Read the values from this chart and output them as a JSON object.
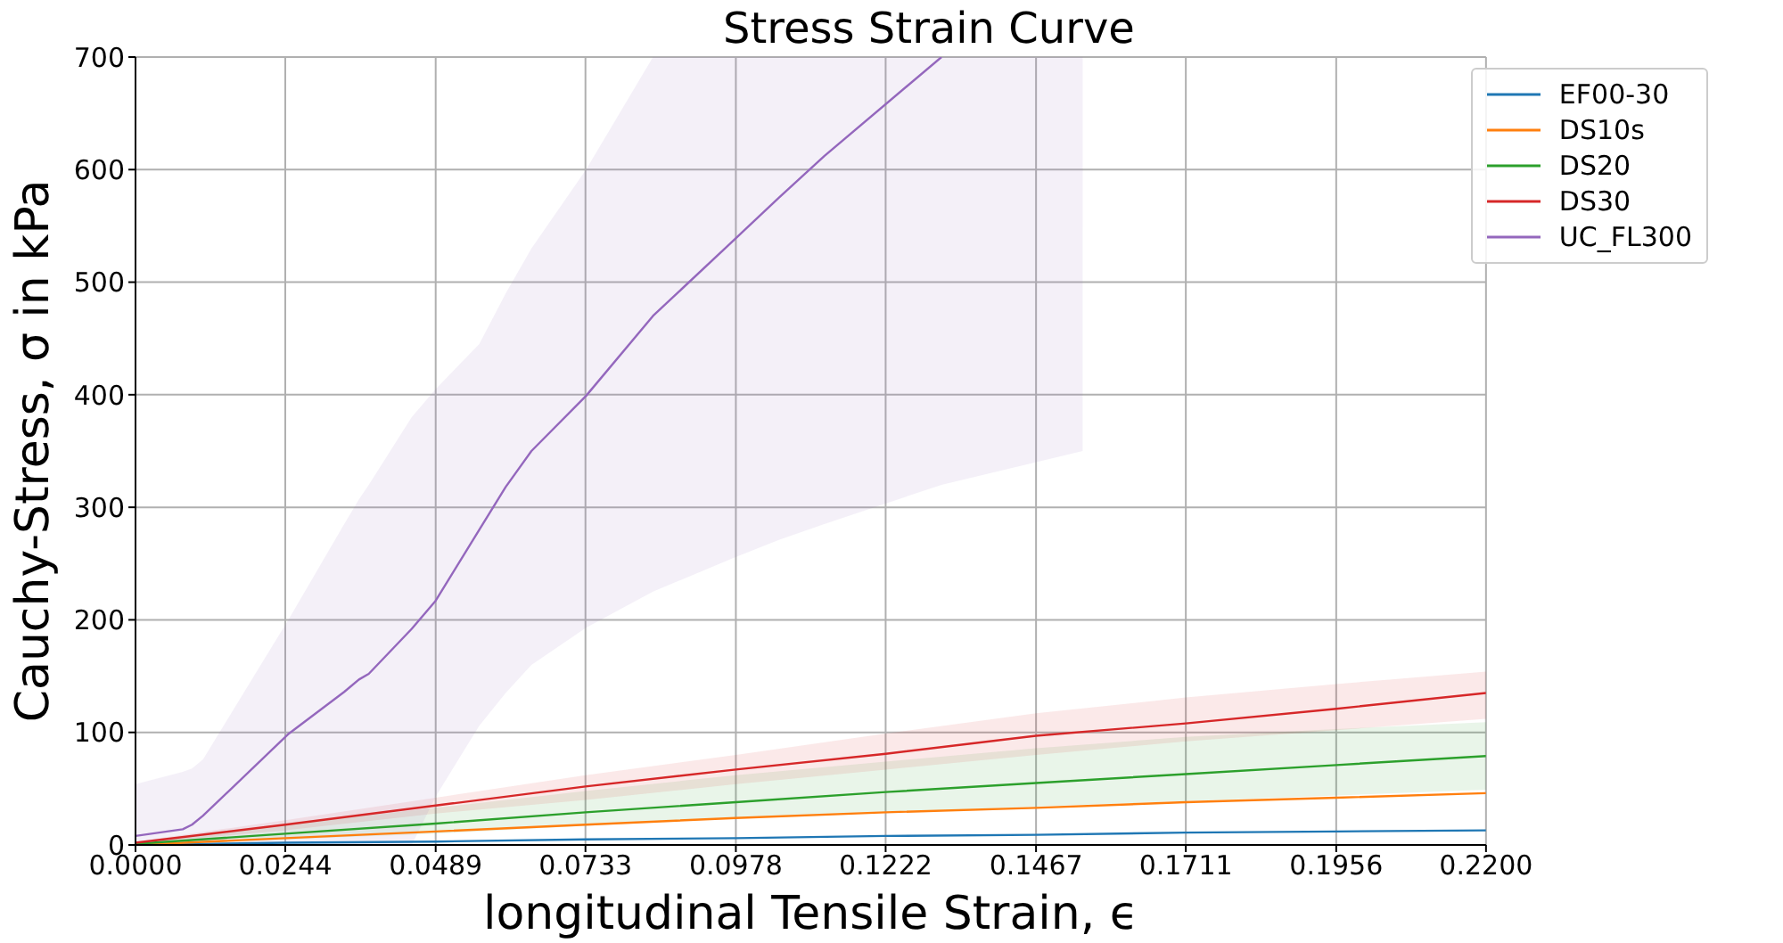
{
  "chart_data": {
    "type": "line",
    "title": "Stress Strain Curve",
    "xlabel": "longitudinal Tensile Strain, ϵ",
    "ylabel": "Cauchy-Stress, σ in kPa",
    "xlim": [
      0,
      0.22
    ],
    "ylim": [
      0,
      700
    ],
    "xticks": [
      {
        "value": 0,
        "label": "0.0000"
      },
      0.0244,
      0.0489,
      0.0733,
      0.0978,
      0.1222,
      0.1467,
      0.1711,
      0.1956,
      {
        "value": 0.22,
        "label": "0.2200"
      }
    ],
    "yticks": [
      0,
      100,
      200,
      300,
      400,
      500,
      600,
      700
    ],
    "grid": true,
    "legend": "top right",
    "x": [
      0,
      0.0244,
      0.0489,
      0.0733,
      0.0978,
      0.1222,
      0.1467,
      0.1711,
      0.1956,
      0.22
    ],
    "series": [
      {
        "name": "EF00-30",
        "color": "#1f77b4",
        "values": [
          0,
          2,
          3,
          5,
          6,
          8,
          9,
          11,
          12,
          13
        ]
      },
      {
        "name": "DS10s",
        "color": "#ff7f0e",
        "values": [
          0,
          6,
          12,
          18,
          24,
          29,
          33,
          38,
          42,
          46
        ]
      },
      {
        "name": "DS20",
        "color": "#2ca02c",
        "values": [
          1,
          10,
          19,
          29,
          38,
          47,
          55,
          63,
          71,
          79
        ],
        "lower": [
          0,
          5,
          10,
          17,
          24,
          29,
          34,
          39,
          44,
          49
        ],
        "upper": [
          2,
          18,
          33,
          48,
          62,
          74,
          86,
          96,
          103,
          109
        ]
      },
      {
        "name": "DS30",
        "color": "#d62728",
        "values": [
          2,
          18,
          35,
          52,
          67,
          81,
          97,
          108,
          121,
          135
        ],
        "lower": [
          1,
          13,
          28,
          40,
          54,
          67,
          80,
          92,
          102,
          112
        ],
        "upper": [
          3,
          22,
          42,
          62,
          80,
          99,
          117,
          131,
          143,
          154
        ]
      },
      {
        "name": "UC_FL300",
        "color": "#9467bd",
        "x": [
          0,
          0.0077,
          0.0092,
          0.011,
          0.025,
          0.034,
          0.0364,
          0.038,
          0.045,
          0.0489,
          0.056,
          0.0603,
          0.0645,
          0.0734,
          0.0843,
          0.0974,
          0.1048,
          0.1122,
          0.1313,
          0.1543
        ],
        "values": [
          8,
          14,
          18,
          26,
          99,
          136,
          147,
          152,
          192,
          217,
          280,
          318,
          350,
          399,
          470,
          537,
          575,
          612,
          700,
          null
        ],
        "lower": [
          0,
          0,
          0,
          0,
          0,
          0,
          0,
          0,
          0,
          43,
          106,
          135,
          160,
          193,
          225,
          255,
          271,
          285,
          320,
          350
        ],
        "upper": [
          54,
          65,
          68,
          76,
          201,
          285,
          307,
          320,
          380,
          405,
          445,
          490,
          530,
          600,
          700,
          700,
          700,
          700,
          700,
          700
        ]
      }
    ]
  }
}
